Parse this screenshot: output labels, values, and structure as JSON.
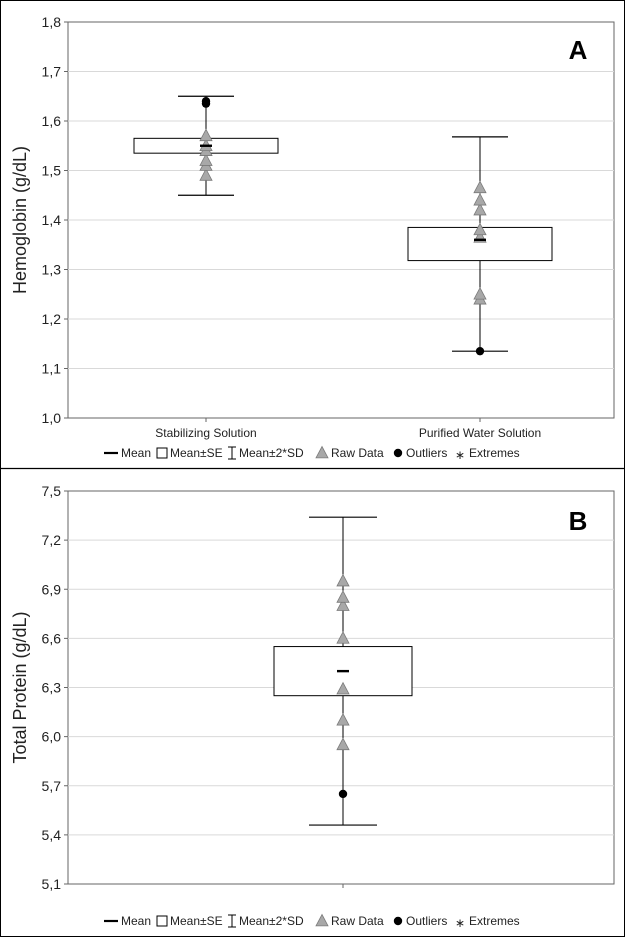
{
  "chart_data": [
    {
      "type": "boxplot",
      "panel_label": "A",
      "ylabel": "Hemoglobin (g/dL)",
      "ylim": [
        1.0,
        1.8
      ],
      "y_ticks": [
        "1,0",
        "1,1",
        "1,2",
        "1,3",
        "1,4",
        "1,5",
        "1,6",
        "1,7",
        "1,8"
      ],
      "y_tick_values": [
        1.0,
        1.1,
        1.2,
        1.3,
        1.4,
        1.5,
        1.6,
        1.7,
        1.8
      ],
      "grid": true,
      "categories": [
        "Stabilizing Solution",
        "Purified Water Solution"
      ],
      "groups": [
        {
          "name": "Stabilizing Solution",
          "mean": 1.55,
          "se_low": 1.535,
          "se_high": 1.565,
          "sd2_low": 1.45,
          "sd2_high": 1.65,
          "raw": [
            1.49,
            1.51,
            1.52,
            1.54,
            1.55,
            1.57
          ],
          "outliers": [
            1.635,
            1.64
          ]
        },
        {
          "name": "Purified Water Solution",
          "mean": 1.36,
          "se_low": 1.318,
          "se_high": 1.385,
          "sd2_low": 1.135,
          "sd2_high": 1.568,
          "raw": [
            1.24,
            1.25,
            1.365,
            1.38,
            1.42,
            1.44,
            1.465
          ],
          "outliers": [
            1.135
          ]
        }
      ]
    },
    {
      "type": "boxplot",
      "panel_label": "B",
      "ylabel": "Total Protein (g/dL)",
      "ylim": [
        5.1,
        7.5
      ],
      "y_ticks": [
        "5,1",
        "5,4",
        "5,7",
        "6,0",
        "6,3",
        "6,6",
        "6,9",
        "7,2",
        "7,5"
      ],
      "y_tick_values": [
        5.1,
        5.4,
        5.7,
        6.0,
        6.3,
        6.6,
        6.9,
        7.2,
        7.5
      ],
      "grid": true,
      "categories": [
        ""
      ],
      "groups": [
        {
          "name": "",
          "mean": 6.4,
          "se_low": 6.25,
          "se_high": 6.55,
          "sd2_low": 5.46,
          "sd2_high": 7.34,
          "raw": [
            5.95,
            6.1,
            6.29,
            6.6,
            6.8,
            6.85,
            6.95
          ],
          "outliers": [
            5.65
          ]
        }
      ]
    }
  ],
  "legend": {
    "mean": "Mean",
    "mean_se": "Mean±SE",
    "mean_2sd": "Mean±2*SD",
    "raw": "Raw Data",
    "outliers": "Outliers",
    "extremes": "Extremes"
  },
  "colors": {
    "raw_fill": "#a8a8a8",
    "raw_stroke": "#7a7a7a",
    "grid": "#d9d9d9",
    "axis": "#666666",
    "box": "#000000",
    "outlier": "#000000"
  }
}
